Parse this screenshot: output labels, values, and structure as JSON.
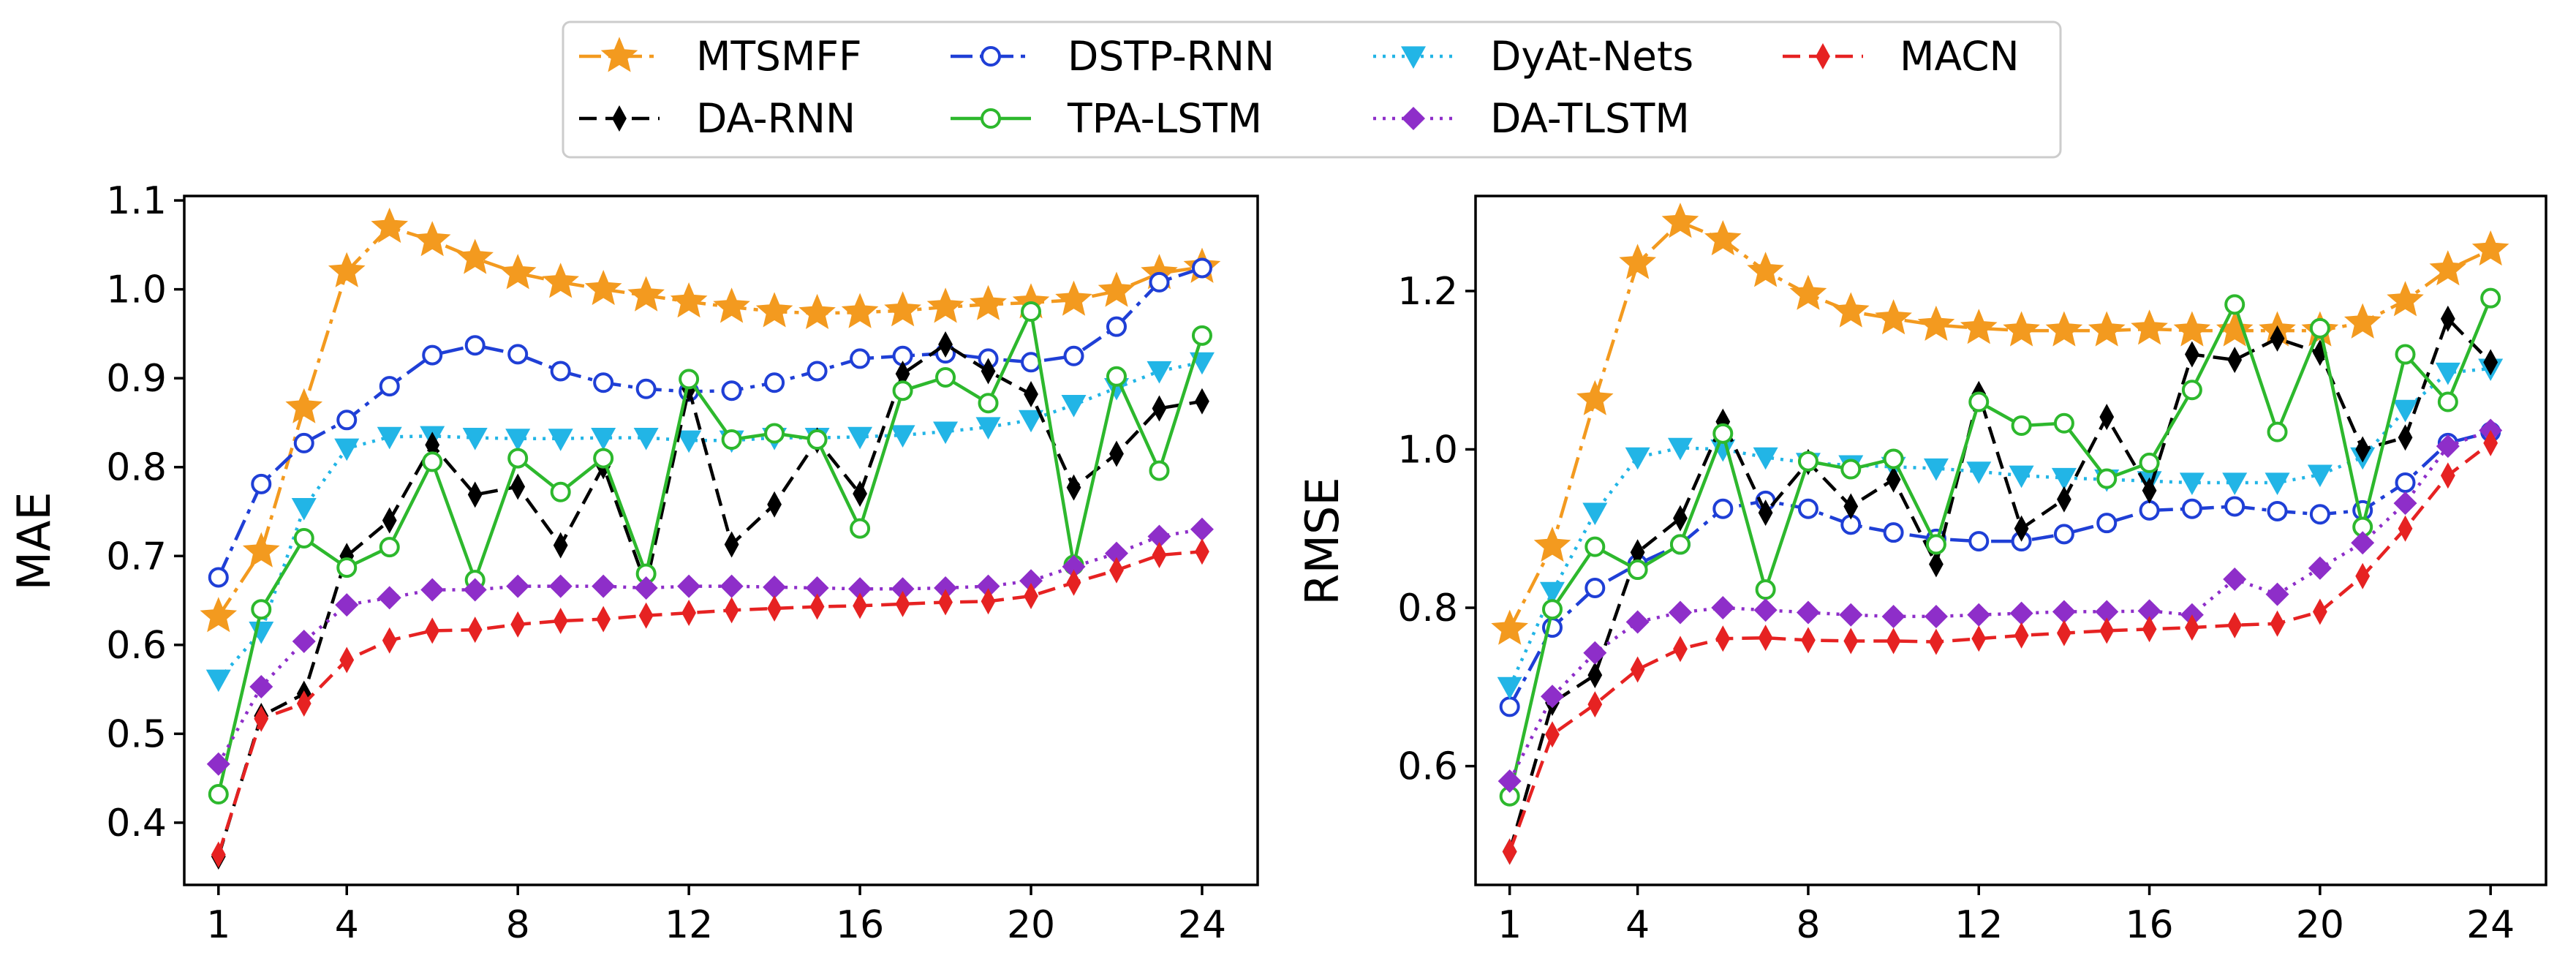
{
  "legend": [
    {
      "key": "mtsmff",
      "label": "MTSMFF"
    },
    {
      "key": "dstp",
      "label": "DSTP-RNN"
    },
    {
      "key": "dyat",
      "label": "DyAt-Nets"
    },
    {
      "key": "macn",
      "label": "MACN"
    },
    {
      "key": "darnn",
      "label": "DA-RNN"
    },
    {
      "key": "tpa",
      "label": "TPA-LSTM"
    },
    {
      "key": "datlstm",
      "label": "DA-TLSTM"
    }
  ],
  "styles": {
    "mtsmff": {
      "color": "#f39a1f",
      "dash": "30,10,6,10",
      "marker": "star",
      "size": 24
    },
    "darnn": {
      "color": "#000000",
      "dash": "24,12",
      "marker": "thin-diamond",
      "size": 18
    },
    "dstp": {
      "color": "#1f3fd6",
      "dash": "30,10,6,10",
      "marker": "open-circle",
      "size": 12
    },
    "tpa": {
      "color": "#2db82d",
      "dash": "",
      "marker": "open-circle",
      "size": 12
    },
    "dyat": {
      "color": "#22b5e6",
      "dash": "4,9",
      "marker": "triangle-down",
      "size": 17
    },
    "datlstm": {
      "color": "#8e2ec9",
      "dash": "4,9",
      "marker": "diamond",
      "size": 16
    },
    "macn": {
      "color": "#e62222",
      "dash": "24,12",
      "marker": "thin-diamond",
      "size": 18
    }
  },
  "chart_data": [
    {
      "type": "line",
      "ylabel": "MAE",
      "xlabel": "",
      "xlim": [
        0.2,
        25.3
      ],
      "ylim": [
        0.33,
        1.105
      ],
      "xticks": [
        1,
        4,
        8,
        12,
        16,
        20,
        24
      ],
      "yticks": [
        0.4,
        0.5,
        0.6,
        0.7,
        0.8,
        0.9,
        1.0,
        1.1
      ],
      "ytick_labels": [
        "0.4",
        "0.5",
        "0.6",
        "0.7",
        "0.8",
        "0.9",
        "1.0",
        "1.1"
      ],
      "x": [
        1,
        2,
        3,
        4,
        5,
        6,
        7,
        8,
        9,
        10,
        11,
        12,
        13,
        14,
        15,
        16,
        17,
        18,
        19,
        20,
        21,
        22,
        23,
        24
      ],
      "series": [
        {
          "key": "mtsmff",
          "name": "MTSMFF",
          "values": [
            0.632,
            0.705,
            0.867,
            1.02,
            1.07,
            1.055,
            1.035,
            1.018,
            1.008,
            1.0,
            0.993,
            0.986,
            0.98,
            0.975,
            0.973,
            0.974,
            0.976,
            0.98,
            0.983,
            0.985,
            0.988,
            0.998,
            1.018,
            1.025
          ]
        },
        {
          "key": "dstp",
          "name": "DSTP-RNN",
          "values": [
            0.676,
            0.781,
            0.827,
            0.853,
            0.891,
            0.926,
            0.937,
            0.927,
            0.908,
            0.895,
            0.888,
            0.885,
            0.886,
            0.895,
            0.908,
            0.922,
            0.925,
            0.928,
            0.922,
            0.918,
            0.925,
            0.958,
            1.008,
            1.024
          ]
        },
        {
          "key": "dyat",
          "name": "DyAt-Nets",
          "values": [
            0.561,
            0.615,
            0.754,
            0.821,
            0.834,
            0.835,
            0.833,
            0.832,
            0.832,
            0.833,
            0.833,
            0.83,
            0.83,
            0.833,
            0.833,
            0.834,
            0.836,
            0.84,
            0.845,
            0.853,
            0.87,
            0.889,
            0.908,
            0.918
          ]
        },
        {
          "key": "darnn",
          "name": "DA-RNN",
          "values": [
            0.362,
            0.52,
            0.545,
            0.7,
            0.74,
            0.825,
            0.769,
            0.778,
            0.712,
            0.801,
            0.667,
            0.888,
            0.713,
            0.758,
            0.83,
            0.77,
            0.905,
            0.938,
            0.908,
            0.882,
            0.777,
            0.815,
            0.866,
            0.874
          ]
        },
        {
          "key": "tpa",
          "name": "TPA-LSTM",
          "values": [
            0.432,
            0.64,
            0.72,
            0.687,
            0.71,
            0.806,
            0.673,
            0.81,
            0.772,
            0.81,
            0.68,
            0.899,
            0.831,
            0.838,
            0.831,
            0.731,
            0.886,
            0.901,
            0.872,
            0.975,
            0.69,
            0.902,
            0.796,
            0.948
          ]
        },
        {
          "key": "datlstm",
          "name": "DA-TLSTM",
          "values": [
            0.466,
            0.553,
            0.604,
            0.645,
            0.653,
            0.662,
            0.662,
            0.666,
            0.666,
            0.666,
            0.664,
            0.666,
            0.666,
            0.665,
            0.664,
            0.663,
            0.663,
            0.664,
            0.666,
            0.672,
            0.688,
            0.703,
            0.722,
            0.73
          ]
        },
        {
          "key": "macn",
          "name": "MACN",
          "values": [
            0.364,
            0.517,
            0.534,
            0.583,
            0.605,
            0.616,
            0.617,
            0.623,
            0.627,
            0.629,
            0.633,
            0.636,
            0.639,
            0.641,
            0.643,
            0.644,
            0.646,
            0.648,
            0.649,
            0.655,
            0.67,
            0.684,
            0.701,
            0.705
          ]
        }
      ]
    },
    {
      "type": "line",
      "ylabel": "RMSE",
      "xlabel": "",
      "xlim": [
        0.2,
        25.3
      ],
      "ylim": [
        0.45,
        1.32
      ],
      "xticks": [
        1,
        4,
        8,
        12,
        16,
        20,
        24
      ],
      "yticks": [
        0.6,
        0.8,
        1.0,
        1.2
      ],
      "ytick_labels": [
        "0.6",
        "0.8",
        "1.0",
        "1.2"
      ],
      "x": [
        1,
        2,
        3,
        4,
        5,
        6,
        7,
        8,
        9,
        10,
        11,
        12,
        13,
        14,
        15,
        16,
        17,
        18,
        19,
        20,
        21,
        22,
        23,
        24
      ],
      "series": [
        {
          "key": "mtsmff",
          "name": "MTSMFF",
          "values": [
            0.773,
            0.878,
            1.063,
            1.235,
            1.287,
            1.265,
            1.225,
            1.196,
            1.174,
            1.165,
            1.157,
            1.153,
            1.15,
            1.15,
            1.15,
            1.152,
            1.15,
            1.15,
            1.15,
            1.15,
            1.16,
            1.188,
            1.227,
            1.252
          ]
        },
        {
          "key": "dstp",
          "name": "DSTP-RNN",
          "values": [
            0.675,
            0.775,
            0.825,
            0.855,
            0.88,
            0.925,
            0.935,
            0.925,
            0.905,
            0.895,
            0.887,
            0.884,
            0.884,
            0.893,
            0.907,
            0.923,
            0.925,
            0.928,
            0.922,
            0.918,
            0.923,
            0.958,
            1.008,
            1.022
          ]
        },
        {
          "key": "dyat",
          "name": "DyAt-Nets",
          "values": [
            0.7,
            0.82,
            0.92,
            0.99,
            1.002,
            1.0,
            0.99,
            0.983,
            0.98,
            0.978,
            0.976,
            0.972,
            0.967,
            0.964,
            0.962,
            0.96,
            0.958,
            0.958,
            0.958,
            0.968,
            0.99,
            1.05,
            1.097,
            1.102
          ]
        },
        {
          "key": "darnn",
          "name": "DA-RNN",
          "values": [
            0.492,
            0.68,
            0.715,
            0.87,
            0.913,
            1.035,
            0.92,
            0.984,
            0.928,
            0.962,
            0.855,
            1.07,
            0.9,
            0.937,
            1.041,
            0.948,
            1.12,
            1.113,
            1.14,
            1.122,
            1.0,
            1.015,
            1.165,
            1.11
          ]
        },
        {
          "key": "tpa",
          "name": "TPA-LSTM",
          "values": [
            0.562,
            0.798,
            0.877,
            0.848,
            0.88,
            1.02,
            0.823,
            0.985,
            0.975,
            0.988,
            0.88,
            1.06,
            1.03,
            1.033,
            0.963,
            0.983,
            1.075,
            1.183,
            1.022,
            1.153,
            0.902,
            1.12,
            1.06,
            1.191
          ]
        },
        {
          "key": "datlstm",
          "name": "DA-TLSTM",
          "values": [
            0.581,
            0.688,
            0.743,
            0.782,
            0.794,
            0.8,
            0.797,
            0.794,
            0.791,
            0.789,
            0.789,
            0.791,
            0.793,
            0.795,
            0.795,
            0.796,
            0.791,
            0.836,
            0.817,
            0.85,
            0.882,
            0.932,
            1.004,
            1.024
          ]
        },
        {
          "key": "macn",
          "name": "MACN",
          "values": [
            0.492,
            0.64,
            0.678,
            0.722,
            0.748,
            0.761,
            0.762,
            0.759,
            0.758,
            0.758,
            0.757,
            0.761,
            0.765,
            0.768,
            0.771,
            0.773,
            0.775,
            0.778,
            0.78,
            0.795,
            0.84,
            0.9,
            0.967,
            1.008
          ]
        }
      ]
    }
  ]
}
